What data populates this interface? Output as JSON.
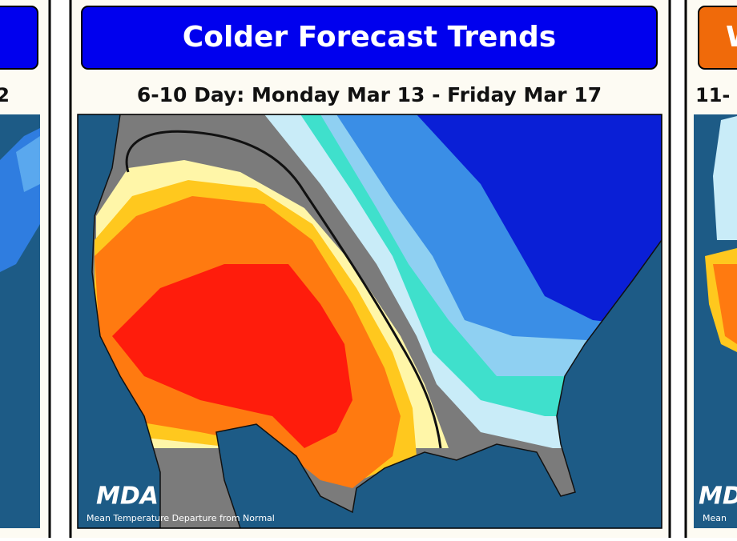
{
  "panels": [
    {
      "subtitle": "2"
    },
    {
      "header": "Colder Forecast Trends",
      "subtitle": "6-10 Day: Monday Mar 13 - Friday Mar 17",
      "logo": "MDA",
      "caption": "Mean Temperature Departure from Normal"
    },
    {
      "header": "W",
      "subtitle": "11-",
      "logo": "MDA",
      "caption": "Mean"
    }
  ]
}
